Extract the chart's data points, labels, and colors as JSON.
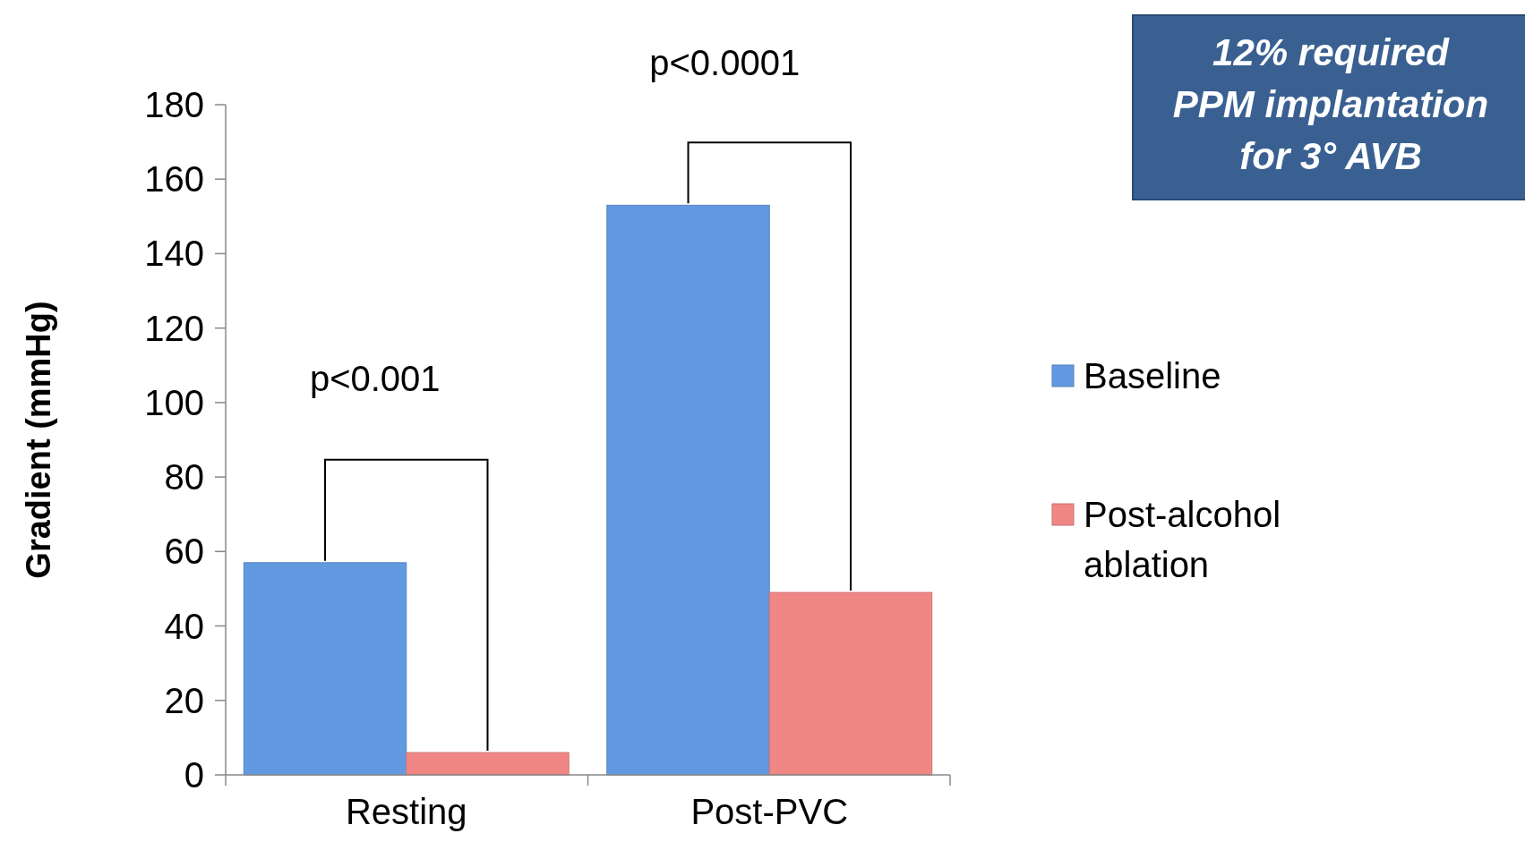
{
  "chart_data": {
    "type": "bar",
    "ylabel": "Gradient (mmHg)",
    "categories": [
      "Resting",
      "Post-PVC"
    ],
    "series": [
      {
        "name": "Baseline",
        "color": "#6399e0",
        "values": [
          57,
          153
        ]
      },
      {
        "name": "Post-alcohol ablation",
        "color": "#f08785",
        "values": [
          6,
          49
        ]
      }
    ],
    "ylim": [
      0,
      180
    ],
    "yticks": [
      0,
      20,
      40,
      60,
      80,
      100,
      120,
      140,
      160,
      180
    ],
    "grid": false,
    "legend": "right",
    "annotations": [
      "p<0.001",
      "p<0.0001",
      "12% required PPM implantation for 3° AVB"
    ]
  }
}
